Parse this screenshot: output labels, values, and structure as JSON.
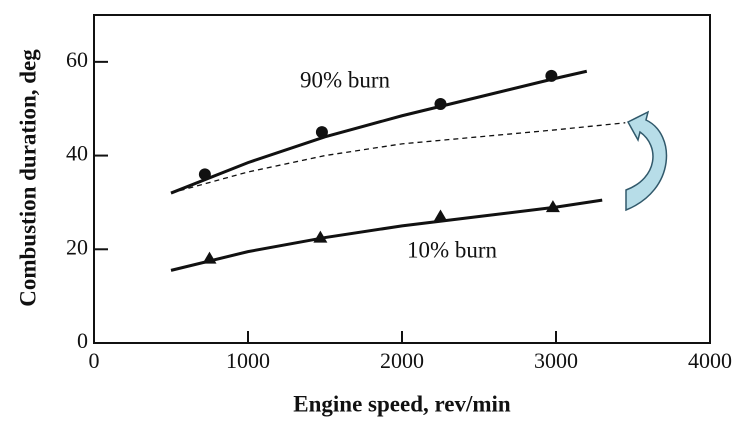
{
  "chart_data": {
    "type": "scatter",
    "x_label": "Engine speed, rev/min",
    "y_label": "Combustion duration, deg",
    "xlim": [
      0,
      4000
    ],
    "xticks": [
      0,
      1000,
      2000,
      3000,
      4000
    ],
    "ylim": [
      0,
      70
    ],
    "yticks": [
      0,
      20,
      40,
      60
    ],
    "series": [
      {
        "name": "90% burn",
        "marker": "circle",
        "color": "#111111",
        "x": [
          720,
          1480,
          2250,
          2970
        ],
        "values": [
          36,
          45,
          51,
          57
        ]
      },
      {
        "name": "10% burn",
        "marker": "triangle",
        "color": "#111111",
        "x": [
          750,
          1470,
          2250,
          2980
        ],
        "values": [
          18,
          22.5,
          27,
          29
        ]
      }
    ],
    "curves": [
      {
        "x": [
          500,
          1000,
          1500,
          2000,
          2500,
          3000,
          3200
        ],
        "values": [
          32,
          38.5,
          44,
          48.5,
          52.5,
          56.5,
          58
        ],
        "dashed": false
      },
      {
        "x": [
          500,
          1000,
          1500,
          2000,
          2500,
          3000,
          3450
        ],
        "values": [
          32,
          36.5,
          40,
          42.5,
          44,
          45.5,
          47
        ],
        "dashed": true
      },
      {
        "x": [
          500,
          1000,
          1500,
          2000,
          2500,
          3000,
          3300
        ],
        "values": [
          15.5,
          19.5,
          22.5,
          25,
          27,
          29,
          30.5
        ],
        "dashed": false
      }
    ]
  }
}
